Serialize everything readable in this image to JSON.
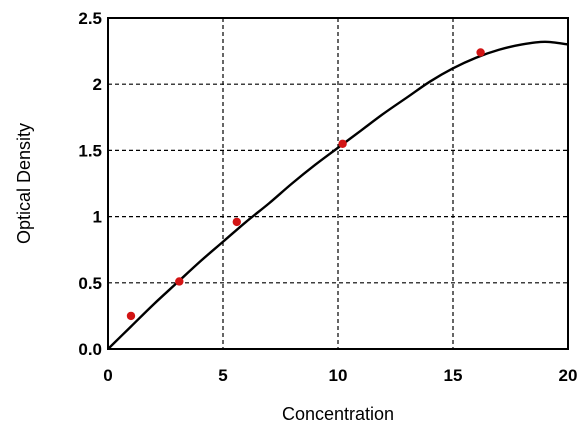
{
  "chart_data": {
    "type": "scatter",
    "title": "",
    "xlabel": "Concentration",
    "ylabel": "Optical Density",
    "xlim": [
      0,
      20
    ],
    "ylim": [
      0,
      2.5
    ],
    "x_ticks": [
      0,
      5,
      10,
      15,
      20
    ],
    "x_tick_labels": [
      "0",
      "5",
      "10",
      "15",
      "20"
    ],
    "y_ticks": [
      0,
      0.5,
      1,
      1.5,
      2,
      2.5
    ],
    "y_tick_labels": [
      "0.0",
      "0.5",
      "1",
      "1.5",
      "2",
      "2.5"
    ],
    "grid": true,
    "legend": "none",
    "series": [
      {
        "kind": "points",
        "color": "#d21414",
        "x": [
          1.0,
          3.1,
          5.6,
          10.2,
          16.2
        ],
        "y": [
          0.25,
          0.51,
          0.96,
          1.55,
          2.24
        ]
      },
      {
        "kind": "fitted-curve",
        "color": "#000000",
        "x": [
          0,
          1,
          2,
          3,
          4,
          5,
          6,
          7,
          8,
          9,
          10,
          11,
          12,
          13,
          14,
          15,
          16,
          17,
          18,
          19,
          20
        ],
        "y": [
          0.0,
          0.17,
          0.34,
          0.5,
          0.66,
          0.81,
          0.96,
          1.1,
          1.25,
          1.39,
          1.52,
          1.65,
          1.78,
          1.9,
          2.02,
          2.12,
          2.2,
          2.26,
          2.3,
          2.32,
          2.3
        ]
      }
    ]
  }
}
